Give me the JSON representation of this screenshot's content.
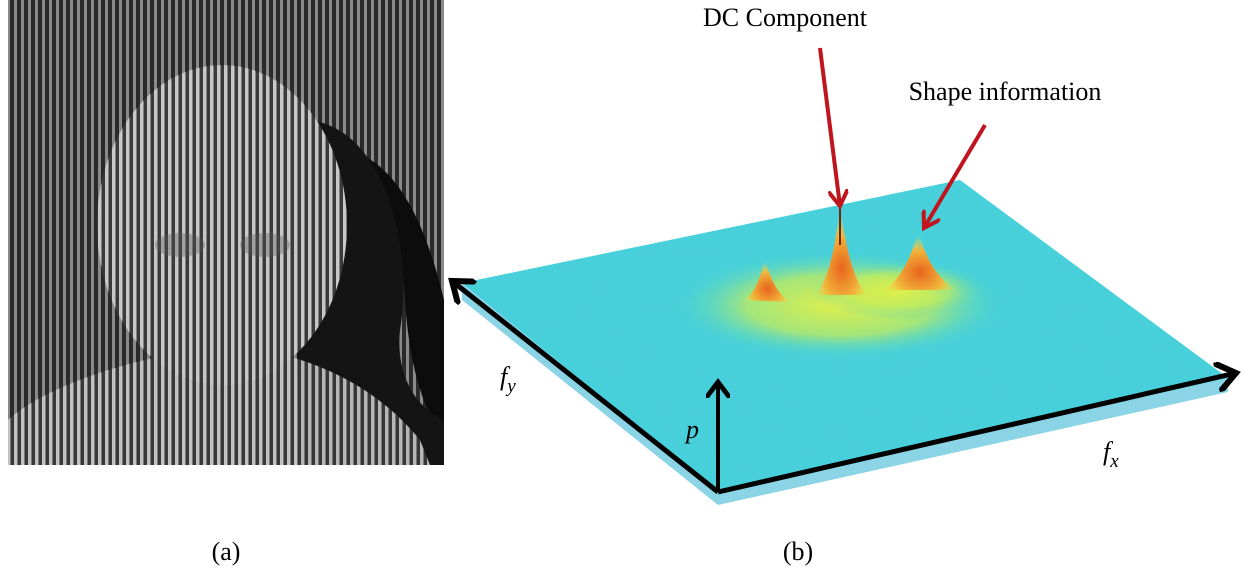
{
  "panels": [
    {
      "label": "(a)"
    },
    {
      "label": "(b)",
      "annotations": [
        "DC Component",
        "Shape information"
      ],
      "axes": {
        "fy": {
          "base": "f",
          "sub": "y"
        },
        "fx": {
          "base": "f",
          "sub": "x"
        },
        "p": "p"
      }
    }
  ]
}
